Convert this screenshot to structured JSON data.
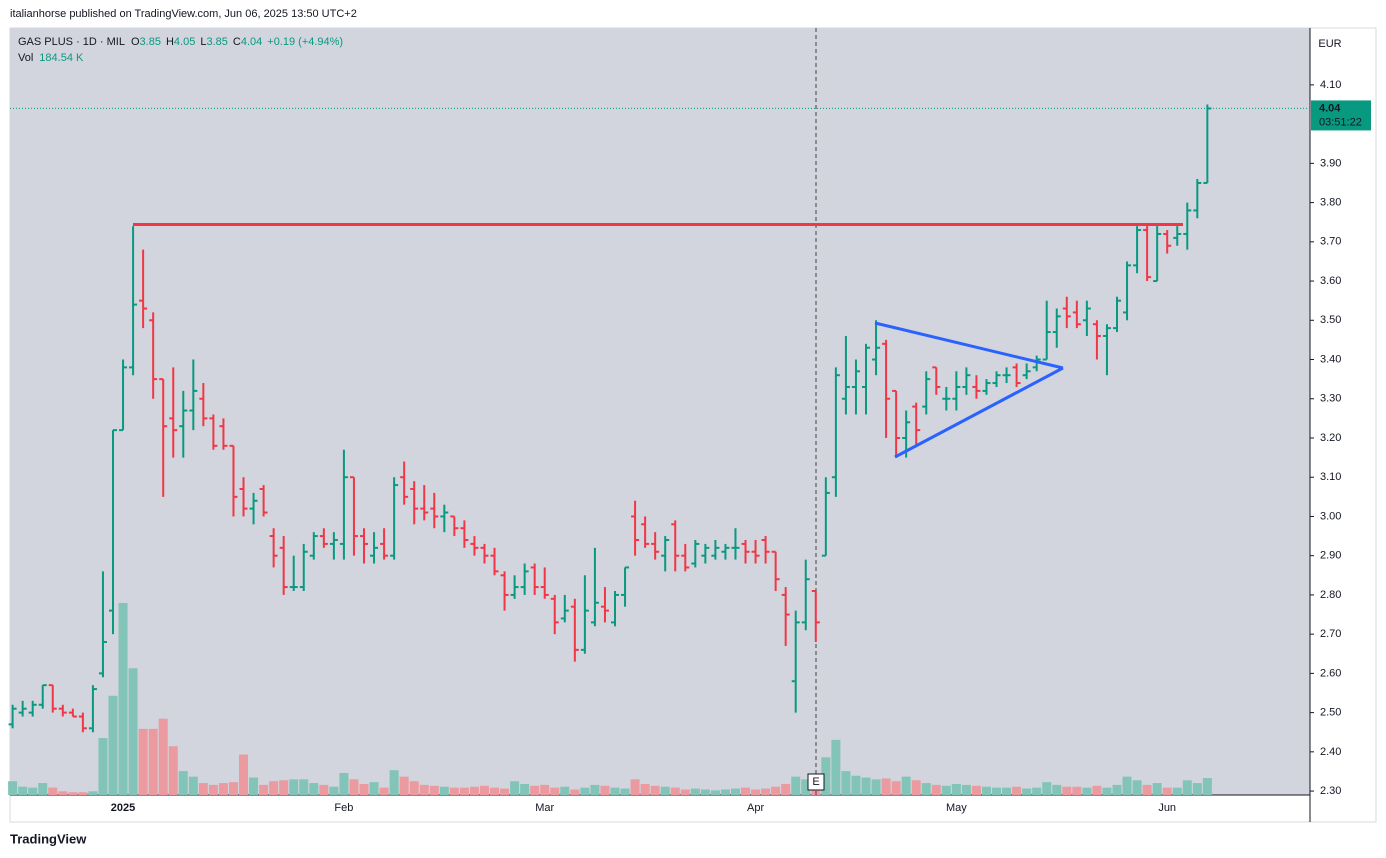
{
  "header": {
    "publisher_line": "italianhorse published on TradingView.com, Jun 06, 2025 13:50 UTC+2"
  },
  "footer": {
    "brand": "TradingView"
  },
  "chart_data": {
    "type": "ohlc",
    "title": "GAS PLUS · 1D · MIL",
    "legend": {
      "open": "O",
      "high": "H",
      "low": "L",
      "close": "C",
      "change": "+0.19 (+4.94%)",
      "volume": "Vol",
      "volume_unit": "K"
    },
    "currency": "EUR",
    "countdown": "03:51:22",
    "earnings_label": "E",
    "up_color": "#089981",
    "down_color": "#f23645",
    "volume_up_color": "#82c4b8",
    "volume_down_color": "#eb9a9f",
    "categories": [
      null,
      null,
      null,
      null,
      null,
      null,
      null,
      null,
      null,
      null,
      null,
      "2025",
      null,
      null,
      null,
      null,
      null,
      null,
      null,
      null,
      null,
      null,
      null,
      null,
      null,
      null,
      null,
      null,
      null,
      null,
      null,
      null,
      null,
      "Feb",
      null,
      null,
      null,
      null,
      null,
      null,
      null,
      null,
      null,
      null,
      null,
      null,
      null,
      null,
      null,
      null,
      null,
      null,
      null,
      "Mar",
      null,
      null,
      null,
      null,
      null,
      null,
      null,
      null,
      null,
      null,
      null,
      null,
      null,
      null,
      null,
      null,
      null,
      null,
      null,
      null,
      "Apr",
      null,
      null,
      null,
      null,
      null,
      null,
      null,
      null,
      null,
      null,
      null,
      null,
      null,
      null,
      null,
      null,
      null,
      null,
      null,
      "May",
      null,
      null,
      null,
      null,
      null,
      null,
      null,
      null,
      null,
      null,
      null,
      null,
      null,
      null,
      null,
      null,
      null,
      null,
      null,
      null,
      "Jun",
      null,
      null,
      null,
      null
    ],
    "open": [
      2.47,
      2.5,
      2.5,
      2.52,
      2.57,
      2.51,
      2.5,
      2.49,
      2.46,
      2.6,
      2.76,
      3.22,
      3.38,
      3.55,
      3.5,
      3.35,
      3.25,
      3.23,
      3.27,
      3.3,
      3.25,
      3.23,
      3.18,
      3.07,
      3.02,
      3.07,
      2.95,
      2.92,
      2.82,
      2.82,
      2.9,
      2.95,
      2.93,
      2.93,
      3.1,
      2.95,
      2.9,
      2.93,
      2.9,
      3.1,
      3.07,
      3.02,
      3.02,
      3.0,
      3.0,
      2.97,
      2.93,
      2.92,
      2.9,
      2.85,
      2.8,
      2.82,
      2.87,
      2.82,
      2.79,
      2.74,
      2.77,
      2.66,
      2.73,
      2.77,
      2.73,
      2.8,
      3.0,
      2.98,
      2.93,
      2.9,
      2.98,
      2.9,
      2.88,
      2.9,
      2.9,
      2.91,
      2.92,
      2.93,
      2.91,
      2.94,
      2.91,
      2.8,
      2.58,
      2.73,
      2.81,
      2.9,
      3.1,
      3.3,
      3.33,
      3.33,
      3.4,
      3.44,
      3.32,
      3.2,
      3.28,
      3.28,
      3.38,
      3.3,
      3.3,
      3.33,
      3.33,
      3.32,
      3.34,
      3.36,
      3.38,
      3.36,
      3.38,
      3.4,
      3.47,
      3.53,
      3.52,
      3.5,
      3.49,
      3.46,
      3.48,
      3.52,
      3.64,
      3.73,
      3.6,
      3.72,
      3.71,
      3.72,
      3.78,
      3.85
    ],
    "high": [
      2.52,
      2.53,
      2.53,
      2.57,
      2.57,
      2.52,
      2.51,
      2.5,
      2.57,
      2.86,
      3.22,
      3.4,
      3.74,
      3.68,
      3.52,
      3.35,
      3.38,
      3.32,
      3.4,
      3.34,
      3.26,
      3.25,
      3.18,
      3.1,
      3.06,
      3.08,
      2.97,
      2.95,
      2.9,
      2.93,
      2.96,
      2.97,
      2.96,
      3.17,
      3.1,
      2.97,
      2.96,
      2.97,
      3.1,
      3.14,
      3.09,
      3.08,
      3.06,
      3.03,
      3.0,
      2.99,
      2.95,
      2.93,
      2.92,
      2.86,
      2.85,
      2.88,
      2.88,
      2.87,
      2.8,
      2.8,
      2.79,
      2.85,
      2.92,
      2.82,
      2.81,
      2.87,
      3.04,
      3.0,
      2.96,
      2.95,
      2.99,
      2.93,
      2.94,
      2.93,
      2.94,
      2.93,
      2.97,
      2.94,
      2.94,
      2.95,
      2.91,
      2.82,
      2.76,
      2.89,
      2.81,
      3.1,
      3.38,
      3.46,
      3.4,
      3.44,
      3.5,
      3.45,
      3.32,
      3.27,
      3.29,
      3.37,
      3.38,
      3.33,
      3.37,
      3.38,
      3.36,
      3.35,
      3.37,
      3.38,
      3.39,
      3.39,
      3.41,
      3.55,
      3.53,
      3.56,
      3.55,
      3.55,
      3.5,
      3.49,
      3.56,
      3.65,
      3.74,
      3.74,
      3.74,
      3.73,
      3.74,
      3.8,
      3.86,
      4.05
    ],
    "low": [
      2.46,
      2.49,
      2.49,
      2.51,
      2.5,
      2.49,
      2.49,
      2.45,
      2.45,
      2.59,
      2.7,
      3.22,
      3.36,
      3.48,
      3.3,
      3.05,
      3.15,
      3.15,
      3.22,
      3.23,
      3.17,
      3.17,
      3.0,
      3.0,
      2.98,
      3.0,
      2.87,
      2.8,
      2.81,
      2.81,
      2.89,
      2.92,
      2.89,
      2.89,
      2.9,
      2.88,
      2.88,
      2.89,
      2.89,
      3.03,
      2.98,
      2.99,
      2.97,
      2.96,
      2.95,
      2.92,
      2.9,
      2.88,
      2.85,
      2.76,
      2.79,
      2.8,
      2.8,
      2.79,
      2.7,
      2.73,
      2.63,
      2.65,
      2.72,
      2.73,
      2.72,
      2.77,
      2.9,
      2.92,
      2.89,
      2.86,
      2.86,
      2.86,
      2.87,
      2.88,
      2.89,
      2.89,
      2.89,
      2.88,
      2.88,
      2.88,
      2.81,
      2.67,
      2.5,
      2.71,
      2.68,
      2.9,
      3.05,
      3.26,
      3.26,
      3.26,
      3.36,
      3.2,
      3.15,
      3.15,
      3.18,
      3.26,
      3.31,
      3.27,
      3.27,
      3.31,
      3.3,
      3.31,
      3.33,
      3.34,
      3.33,
      3.35,
      3.37,
      3.4,
      3.43,
      3.48,
      3.48,
      3.46,
      3.4,
      3.36,
      3.47,
      3.5,
      3.62,
      3.6,
      3.6,
      3.67,
      3.69,
      3.68,
      3.76,
      3.85
    ],
    "close": [
      2.51,
      2.51,
      2.52,
      2.57,
      2.51,
      2.5,
      2.49,
      2.46,
      2.56,
      2.68,
      3.22,
      3.38,
      3.54,
      3.53,
      3.35,
      3.23,
      3.22,
      3.27,
      3.32,
      3.25,
      3.18,
      3.18,
      3.05,
      3.02,
      3.04,
      3.01,
      2.9,
      2.82,
      2.82,
      2.91,
      2.95,
      2.93,
      2.94,
      3.1,
      2.95,
      2.93,
      2.92,
      2.9,
      3.08,
      3.05,
      3.02,
      3.01,
      3.0,
      3.01,
      2.97,
      2.94,
      2.92,
      2.9,
      2.86,
      2.8,
      2.82,
      2.86,
      2.82,
      2.8,
      2.73,
      2.76,
      2.66,
      2.76,
      2.78,
      2.76,
      2.8,
      2.87,
      2.94,
      2.93,
      2.91,
      2.94,
      2.9,
      2.87,
      2.93,
      2.92,
      2.92,
      2.92,
      2.92,
      2.91,
      2.9,
      2.91,
      2.84,
      2.75,
      2.73,
      2.84,
      2.73,
      3.06,
      3.36,
      3.33,
      3.37,
      3.43,
      3.43,
      3.3,
      3.2,
      3.24,
      3.22,
      3.35,
      3.33,
      3.3,
      3.33,
      3.36,
      3.32,
      3.34,
      3.36,
      3.36,
      3.34,
      3.37,
      3.4,
      3.47,
      3.51,
      3.51,
      3.49,
      3.53,
      3.46,
      3.48,
      3.55,
      3.64,
      3.73,
      3.61,
      3.72,
      3.69,
      3.72,
      3.78,
      3.85,
      4.04
    ],
    "volume": [
      150,
      90,
      80,
      130,
      80,
      40,
      30,
      30,
      40,
      620,
      1080,
      2090,
      1380,
      720,
      720,
      830,
      530,
      260,
      200,
      130,
      110,
      130,
      140,
      440,
      190,
      110,
      150,
      160,
      170,
      170,
      130,
      110,
      90,
      240,
      170,
      120,
      140,
      80,
      270,
      200,
      150,
      110,
      100,
      90,
      80,
      80,
      90,
      100,
      80,
      70,
      150,
      120,
      100,
      110,
      80,
      90,
      60,
      80,
      110,
      100,
      80,
      70,
      170,
      120,
      100,
      90,
      80,
      60,
      70,
      60,
      50,
      60,
      70,
      80,
      60,
      70,
      90,
      120,
      200,
      170,
      130,
      410,
      600,
      260,
      210,
      190,
      170,
      180,
      150,
      200,
      160,
      130,
      110,
      100,
      120,
      110,
      100,
      90,
      80,
      80,
      90,
      70,
      80,
      140,
      110,
      90,
      90,
      80,
      100,
      80,
      110,
      200,
      160,
      110,
      130,
      80,
      80,
      160,
      130,
      184.54
    ],
    "ylim": [
      2.29,
      4.245
    ],
    "yticks": [
      {
        "value": 2.3,
        "label": "2.30"
      },
      {
        "value": 2.4,
        "label": "2.40"
      },
      {
        "value": 2.5,
        "label": "2.50"
      },
      {
        "value": 2.6,
        "label": "2.60"
      },
      {
        "value": 2.7,
        "label": "2.70"
      },
      {
        "value": 2.8,
        "label": "2.80"
      },
      {
        "value": 2.9,
        "label": "2.90"
      },
      {
        "value": 3.0,
        "label": "3.00"
      },
      {
        "value": 3.1,
        "label": "3.10"
      },
      {
        "value": 3.2,
        "label": "3.20"
      },
      {
        "value": 3.3,
        "label": "3.30"
      },
      {
        "value": 3.4,
        "label": "3.40"
      },
      {
        "value": 3.5,
        "label": "3.50"
      },
      {
        "value": 3.6,
        "label": "3.60"
      },
      {
        "value": 3.7,
        "label": "3.70"
      },
      {
        "value": 3.8,
        "label": "3.80"
      },
      {
        "value": 3.9,
        "label": "3.90"
      },
      {
        "value": 4.1,
        "label": "4.10"
      }
    ]
  }
}
